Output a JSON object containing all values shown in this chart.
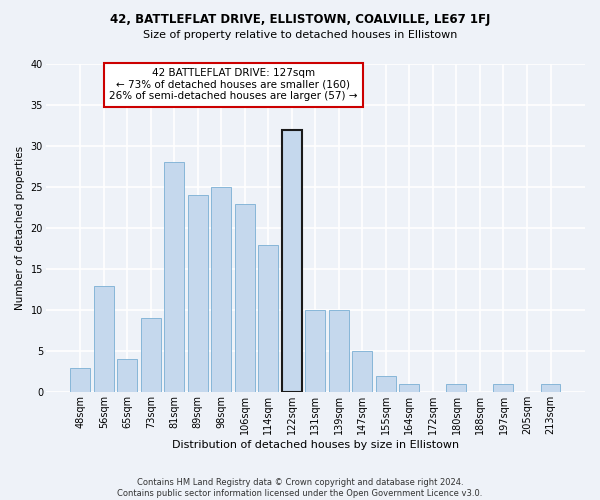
{
  "title1": "42, BATTLEFLAT DRIVE, ELLISTOWN, COALVILLE, LE67 1FJ",
  "title2": "Size of property relative to detached houses in Ellistown",
  "xlabel": "Distribution of detached houses by size in Ellistown",
  "ylabel": "Number of detached properties",
  "categories": [
    "48sqm",
    "56sqm",
    "65sqm",
    "73sqm",
    "81sqm",
    "89sqm",
    "98sqm",
    "106sqm",
    "114sqm",
    "122sqm",
    "131sqm",
    "139sqm",
    "147sqm",
    "155sqm",
    "164sqm",
    "172sqm",
    "180sqm",
    "188sqm",
    "197sqm",
    "205sqm",
    "213sqm"
  ],
  "values": [
    3,
    13,
    4,
    9,
    28,
    24,
    25,
    23,
    18,
    32,
    10,
    10,
    5,
    2,
    1,
    0,
    1,
    0,
    1,
    0,
    1
  ],
  "bar_color": "#c5d8ed",
  "bar_edge_color": "#7aafd4",
  "highlight_index": 9,
  "highlight_edge_color": "#1a1a1a",
  "annotation_text": "42 BATTLEFLAT DRIVE: 127sqm\n← 73% of detached houses are smaller (160)\n26% of semi-detached houses are larger (57) →",
  "annotation_box_edge_color": "#cc0000",
  "annotation_box_face_color": "#ffffff",
  "ylim": [
    0,
    40
  ],
  "yticks": [
    0,
    5,
    10,
    15,
    20,
    25,
    30,
    35,
    40
  ],
  "footnote": "Contains HM Land Registry data © Crown copyright and database right 2024.\nContains public sector information licensed under the Open Government Licence v3.0.",
  "bg_color": "#eef2f8",
  "plot_bg_color": "#eef2f8",
  "grid_color": "#ffffff",
  "title1_fontsize": 8.5,
  "title2_fontsize": 8.0,
  "xlabel_fontsize": 8.0,
  "ylabel_fontsize": 7.5,
  "tick_fontsize": 7.0,
  "annotation_fontsize": 7.5,
  "footnote_fontsize": 6.0
}
